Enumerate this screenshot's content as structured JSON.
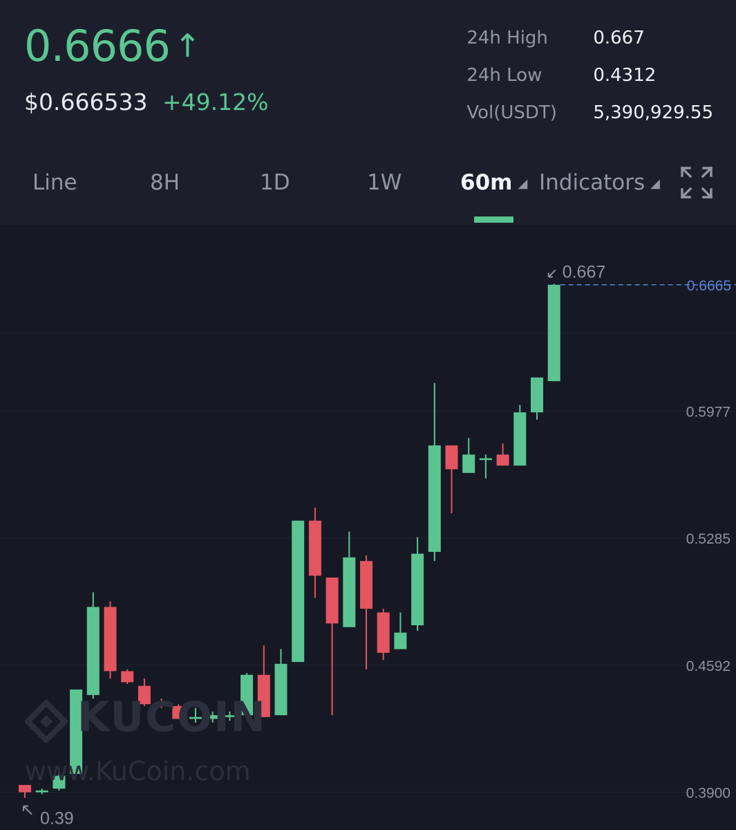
{
  "header": {
    "last_price": "0.6666",
    "arrow": "↑",
    "usd_price": "$0.666533",
    "change_pct": "+49.12%"
  },
  "stats": [
    {
      "label": "24h High",
      "value": "0.667"
    },
    {
      "label": "24h Low",
      "value": "0.4312"
    },
    {
      "label": "Vol(USDT)",
      "value": "5,390,929.55"
    }
  ],
  "tabs": {
    "line": "Line",
    "h8": "8H",
    "d1": "1D",
    "w1": "1W",
    "interval": "60m",
    "indicators": "Indicators"
  },
  "icons": {
    "expand": "expand-icon",
    "caret": "caret-down-icon"
  },
  "colors": {
    "up": "#5bc592",
    "down": "#e35561",
    "current_price_line": "#5d82d6"
  },
  "watermark": {
    "brand": "KUCOIN",
    "url": "www.KuCoin.com"
  },
  "chart_data": {
    "type": "candlestick",
    "interval": "60m",
    "y_ticks": [
      "0.3900",
      "0.4592",
      "0.5285",
      "0.5977"
    ],
    "y_tick_values": [
      0.39,
      0.4592,
      0.5285,
      0.5977
    ],
    "ylim": [
      0.3822,
      0.6866
    ],
    "current_price_label": "0.6665",
    "high_marker": "0.667",
    "low_marker": "0.39",
    "candles": [
      {
        "o": 0.394,
        "c": 0.39,
        "h": 0.394,
        "l": 0.387
      },
      {
        "o": 0.39,
        "c": 0.391,
        "h": 0.392,
        "l": 0.389
      },
      {
        "o": 0.392,
        "c": 0.399,
        "h": 0.401,
        "l": 0.391
      },
      {
        "o": 0.4,
        "c": 0.446,
        "h": 0.446,
        "l": 0.4
      },
      {
        "o": 0.443,
        "c": 0.491,
        "h": 0.499,
        "l": 0.441
      },
      {
        "o": 0.491,
        "c": 0.456,
        "h": 0.494,
        "l": 0.452
      },
      {
        "o": 0.456,
        "c": 0.45,
        "h": 0.457,
        "l": 0.449
      },
      {
        "o": 0.448,
        "c": 0.438,
        "h": 0.452,
        "l": 0.437
      },
      {
        "o": 0.438,
        "c": 0.437,
        "h": 0.441,
        "l": 0.436
      },
      {
        "o": 0.437,
        "c": 0.43,
        "h": 0.438,
        "l": 0.43
      },
      {
        "o": 0.43,
        "c": 0.431,
        "h": 0.436,
        "l": 0.428
      },
      {
        "o": 0.43,
        "c": 0.432,
        "h": 0.434,
        "l": 0.428
      },
      {
        "o": 0.431,
        "c": 0.432,
        "h": 0.434,
        "l": 0.429
      },
      {
        "o": 0.432,
        "c": 0.454,
        "h": 0.455,
        "l": 0.431
      },
      {
        "o": 0.454,
        "c": 0.431,
        "h": 0.47,
        "l": 0.431
      },
      {
        "o": 0.432,
        "c": 0.46,
        "h": 0.468,
        "l": 0.432
      },
      {
        "o": 0.461,
        "c": 0.538,
        "h": 0.538,
        "l": 0.461
      },
      {
        "o": 0.538,
        "c": 0.508,
        "h": 0.545,
        "l": 0.496
      },
      {
        "o": 0.507,
        "c": 0.482,
        "h": 0.507,
        "l": 0.432
      },
      {
        "o": 0.48,
        "c": 0.518,
        "h": 0.532,
        "l": 0.48
      },
      {
        "o": 0.516,
        "c": 0.49,
        "h": 0.519,
        "l": 0.457
      },
      {
        "o": 0.488,
        "c": 0.466,
        "h": 0.49,
        "l": 0.462
      },
      {
        "o": 0.468,
        "c": 0.477,
        "h": 0.488,
        "l": 0.468
      },
      {
        "o": 0.481,
        "c": 0.52,
        "h": 0.529,
        "l": 0.478
      },
      {
        "o": 0.521,
        "c": 0.579,
        "h": 0.613,
        "l": 0.516
      },
      {
        "o": 0.579,
        "c": 0.566,
        "h": 0.579,
        "l": 0.542
      },
      {
        "o": 0.564,
        "c": 0.574,
        "h": 0.583,
        "l": 0.564
      },
      {
        "o": 0.571,
        "c": 0.572,
        "h": 0.574,
        "l": 0.561
      },
      {
        "o": 0.574,
        "c": 0.568,
        "h": 0.58,
        "l": 0.568
      },
      {
        "o": 0.568,
        "c": 0.597,
        "h": 0.601,
        "l": 0.568
      },
      {
        "o": 0.597,
        "c": 0.616,
        "h": 0.616,
        "l": 0.593
      },
      {
        "o": 0.614,
        "c": 0.6665,
        "h": 0.667,
        "l": 0.614
      }
    ]
  }
}
